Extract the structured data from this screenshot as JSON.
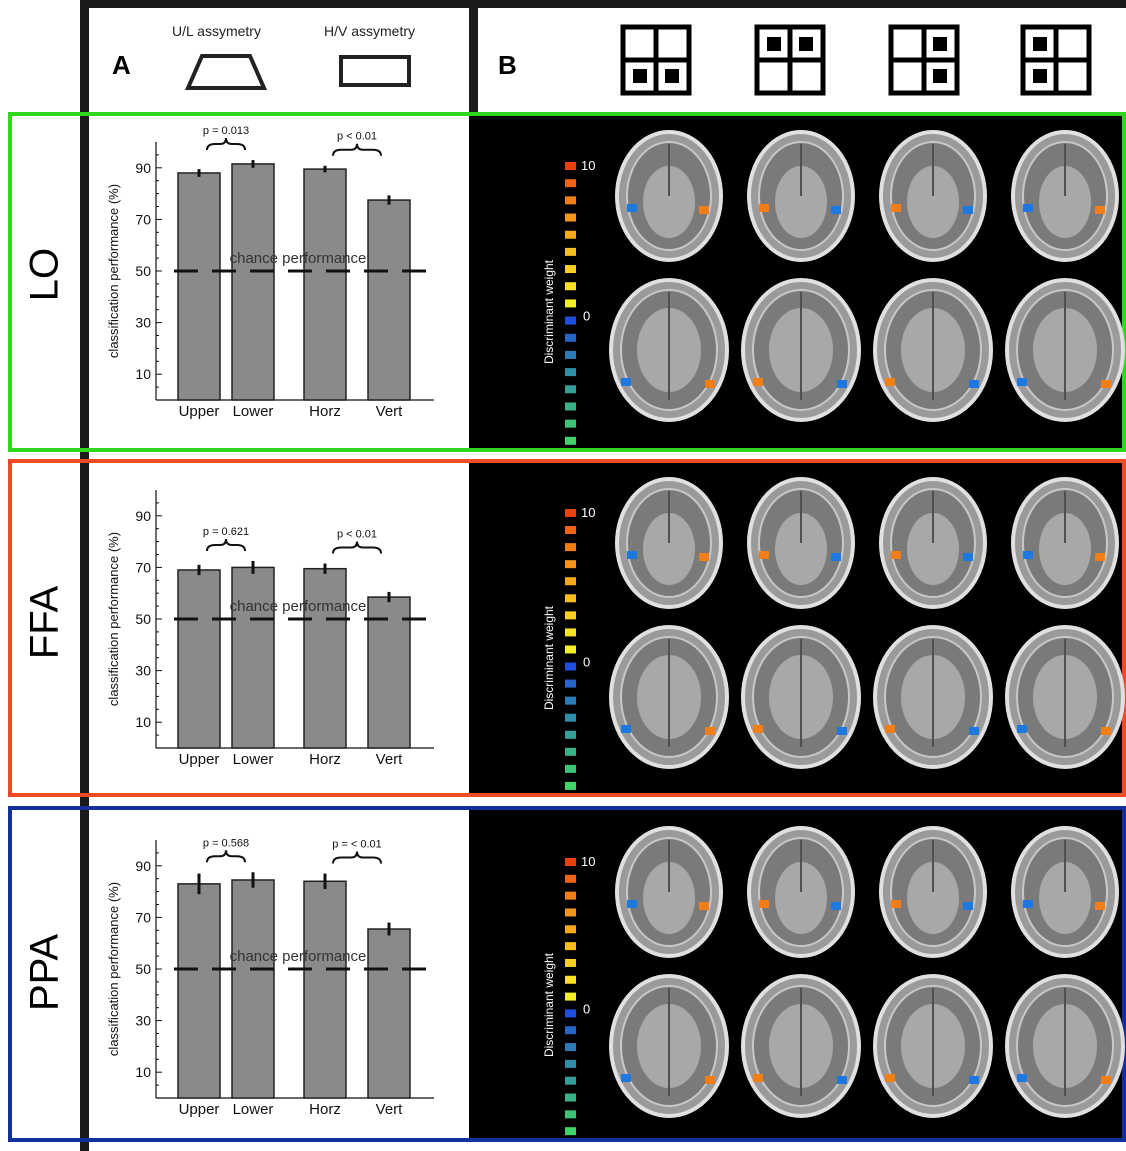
{
  "colors": {
    "LO": "#2fd81e",
    "FFA": "#ef4a23",
    "PPA": "#11309b",
    "bar_fill": "#8a8a8a",
    "frame": "#1b1b1b"
  },
  "header": {
    "panel_a": "A",
    "panel_b": "B",
    "ul_label": "U/L assymetry",
    "hv_label": "H/V assymetry"
  },
  "rows": [
    {
      "roi": "LO",
      "chart_data": {
        "type": "bar",
        "categories": [
          "Upper",
          "Lower",
          "Horz",
          "Vert"
        ],
        "values": [
          88,
          91.5,
          89.5,
          77.5
        ],
        "errors": [
          1.5,
          1.5,
          1.3,
          1.8
        ],
        "ylabel": "classification performance (%)",
        "ylim": [
          0,
          100
        ],
        "yticks": [
          10,
          30,
          50,
          70,
          90
        ],
        "chance_level": 50,
        "chance_label": "chance performance",
        "annotations": [
          "p = 0.013",
          "p < 0.01"
        ]
      },
      "colorbar": {
        "label": "Discriminant weight",
        "max": "10",
        "mid": "0",
        "min": "-10"
      }
    },
    {
      "roi": "FFA",
      "chart_data": {
        "type": "bar",
        "categories": [
          "Upper",
          "Lower",
          "Horz",
          "Vert"
        ],
        "values": [
          69,
          70,
          69.5,
          58.5
        ],
        "errors": [
          2,
          2.5,
          2,
          2
        ],
        "ylabel": "classification performance (%)",
        "ylim": [
          0,
          100
        ],
        "yticks": [
          10,
          30,
          50,
          70,
          90
        ],
        "chance_level": 50,
        "chance_label": "chance performance",
        "annotations": [
          "p = 0.621",
          "p < 0.01"
        ]
      },
      "colorbar": {
        "label": "Discriminant weight",
        "max": "10",
        "mid": "0",
        "min": "-10"
      }
    },
    {
      "roi": "PPA",
      "chart_data": {
        "type": "bar",
        "categories": [
          "Upper",
          "Lower",
          "Horz",
          "Vert"
        ],
        "values": [
          83,
          84.5,
          84,
          65.5
        ],
        "errors": [
          4,
          3,
          3,
          2.5
        ],
        "ylabel": "classification performance (%)",
        "ylim": [
          0,
          100
        ],
        "yticks": [
          10,
          30,
          50,
          70,
          90
        ],
        "chance_level": 50,
        "chance_label": "chance performance",
        "annotations": [
          "p = 0.568",
          "p = < 0.01"
        ]
      },
      "colorbar": {
        "label": "Discriminant weight",
        "max": "10",
        "mid": "0",
        "min": "-10"
      }
    }
  ]
}
